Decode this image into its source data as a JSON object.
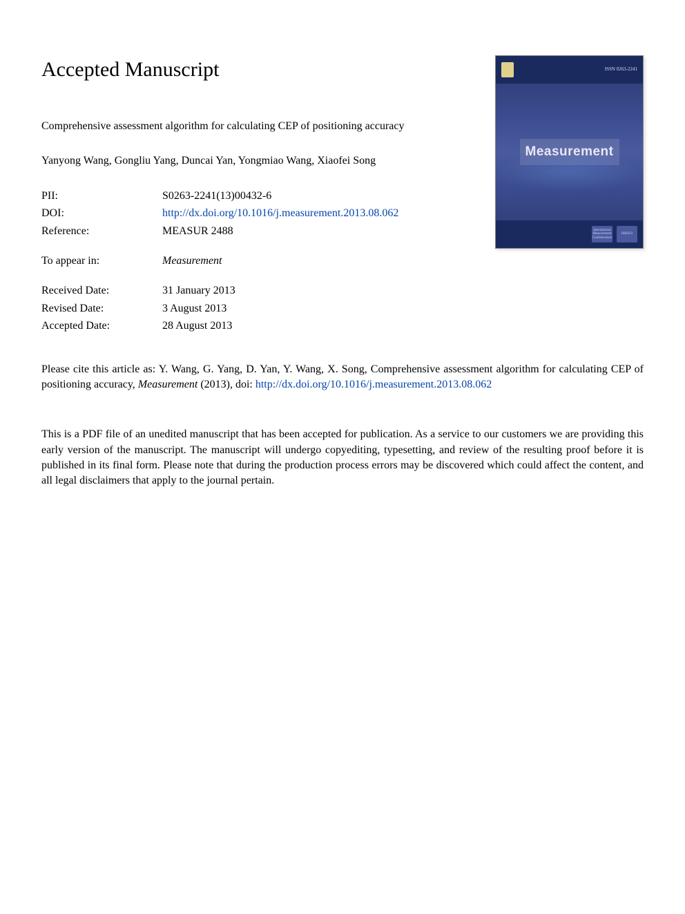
{
  "heading": "Accepted Manuscript",
  "title": "Comprehensive assessment algorithm for calculating CEP of positioning accuracy",
  "authors": "Yanyong Wang, Gongliu Yang, Duncai Yan, Yongmiao Wang, Xiaofei Song",
  "meta": {
    "pii_label": "PII:",
    "pii_value": "S0263-2241(13)00432-6",
    "doi_label": "DOI:",
    "doi_value": "http://dx.doi.org/10.1016/j.measurement.2013.08.062",
    "reference_label": "Reference:",
    "reference_value": "MEASUR 2488",
    "appear_label": "To appear in:",
    "appear_value": "Measurement",
    "received_label": "Received Date:",
    "received_value": "31 January 2013",
    "revised_label": "Revised Date:",
    "revised_value": "3 August 2013",
    "accepted_label": "Accepted Date:",
    "accepted_value": "28 August 2013"
  },
  "citation": {
    "pre": "Please cite this article as: Y. Wang, G. Yang, D. Yan, Y. Wang, X. Song, Comprehensive assessment algorithm for calculating CEP of positioning accuracy, ",
    "journal": "Measurement",
    "mid": " (2013), doi: ",
    "doi_link": "http://dx.doi.org/10.1016/j.measurement.2013.08.062"
  },
  "disclaimer": "This is a PDF file of an unedited manuscript that has been accepted for publication. As a service to our customers we are providing this early version of the manuscript. The manuscript will undergo copyediting, typesetting, and review of the resulting proof before it is published in its final form. Please note that during the production process errors may be discovered which could affect the content, and all legal disclaimers that apply to the journal pertain.",
  "cover": {
    "journal_title": "Measurement",
    "issn": "ISSN 0263-2241",
    "badge1": "International Measurement Confederation",
    "badge2": "IMEKO",
    "colors": {
      "bg_top": "#1a2a5e",
      "bg_grad1": "#2a3a6e",
      "bg_grad2": "#4a5a9e",
      "title_color": "#e8e8f8",
      "link_color": "#0645ad"
    }
  }
}
